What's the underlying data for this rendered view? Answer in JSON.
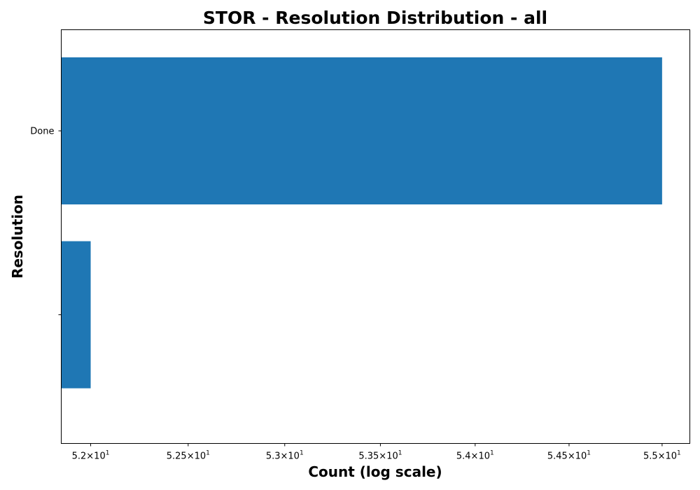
{
  "chart_data": {
    "type": "bar",
    "orientation": "horizontal",
    "title": "STOR - Resolution Distribution - all",
    "xlabel": "Count (log scale)",
    "ylabel": "Resolution",
    "x_scale": "log",
    "categories": [
      "Done",
      ""
    ],
    "values": [
      55,
      52
    ],
    "xlim": [
      51.85,
      55.15
    ],
    "x_ticks": [
      52,
      52.5,
      53,
      53.5,
      54,
      54.5,
      55
    ],
    "x_tick_labels": [
      {
        "mantissa": "5.2",
        "exp": "1"
      },
      {
        "mantissa": "5.25",
        "exp": "1"
      },
      {
        "mantissa": "5.3",
        "exp": "1"
      },
      {
        "mantissa": "5.35",
        "exp": "1"
      },
      {
        "mantissa": "5.4",
        "exp": "1"
      },
      {
        "mantissa": "5.45",
        "exp": "1"
      },
      {
        "mantissa": "5.5",
        "exp": "1"
      }
    ],
    "bar_color": "#1f77b4",
    "grid": false,
    "legend": false
  }
}
